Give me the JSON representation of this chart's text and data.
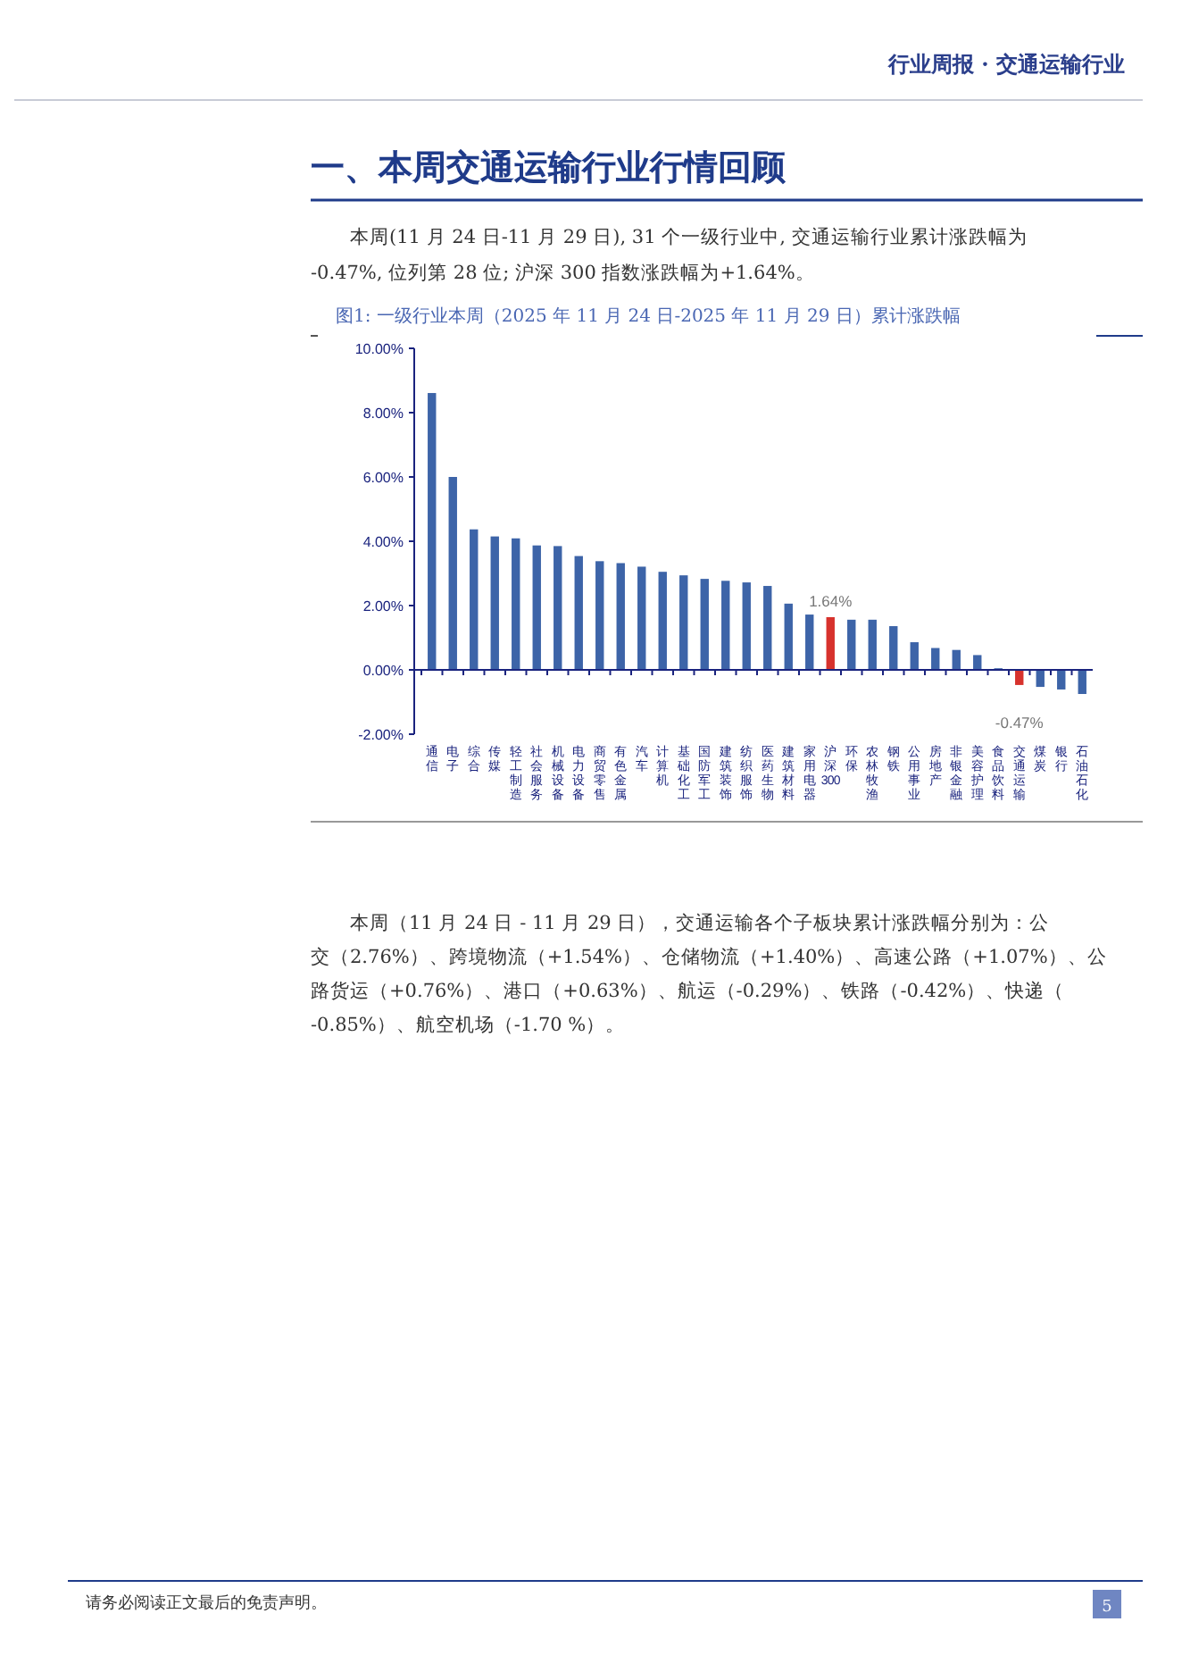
{
  "chart_data": {
    "type": "bar",
    "title": "图1: 一级行业本周（2025 年 11 月 24 日-2025 年 11 月 29 日）累计涨跌幅",
    "subtitle": "一、本周交通运输行业行情回顾",
    "annotations": [
      "行业周报 · 交通运输行业",
      "本周(11 月 24 日-11 月 29 日), 31 个一级行业中, 交通运输行业累计涨跌幅为-0.47%, 位列第 28 位; 沪深 300 指数涨跌幅为+1.64%。",
      "本周（11 月 24 日 - 11 月 29 日），交通运输各个子板块累计涨跌幅分别为：公交（2.76%）、跨境物流（+1.54%）、仓储物流（+1.40%）、高速公路（+1.07%）、公路货运（+0.76%）、港口（+0.63%）、航运（-0.29%）、铁路（-0.42%）、快递（-0.85%）、航空机场（-1.70 %）。",
      "请务必阅读正文最后的免责声明。",
      "5"
    ],
    "categories": [
      "通信",
      "电子",
      "综合",
      "传媒",
      "轻工制造",
      "社会服务",
      "机械设备",
      "电力设备",
      "商贸零售",
      "有色金属",
      "汽车",
      "计算机",
      "基础化工",
      "国防军工",
      "建筑装饰",
      "纺织服饰",
      "医药生物",
      "建筑材料",
      "家用电器",
      "沪深300",
      "环保",
      "农林牧渔",
      "钢铁",
      "公用事业",
      "房地产",
      "非银金融",
      "美容护理",
      "食品饮料",
      "交通运输",
      "煤炭",
      "银行",
      "石油石化"
    ],
    "values": [
      8.61,
      6.0,
      4.37,
      4.15,
      4.09,
      3.87,
      3.85,
      3.54,
      3.38,
      3.32,
      3.21,
      3.05,
      2.94,
      2.83,
      2.77,
      2.72,
      2.61,
      2.06,
      1.72,
      1.64,
      1.56,
      1.56,
      1.36,
      0.86,
      0.68,
      0.62,
      0.46,
      0.05,
      -0.47,
      -0.53,
      -0.61,
      -0.75
    ],
    "colors": [
      "#3d64a8",
      "#3d64a8",
      "#3d64a8",
      "#3d64a8",
      "#3d64a8",
      "#3d64a8",
      "#3d64a8",
      "#3d64a8",
      "#3d64a8",
      "#3d64a8",
      "#3d64a8",
      "#3d64a8",
      "#3d64a8",
      "#3d64a8",
      "#3d64a8",
      "#3d64a8",
      "#3d64a8",
      "#3d64a8",
      "#3d64a8",
      "#d7322d",
      "#3d64a8",
      "#3d64a8",
      "#3d64a8",
      "#3d64a8",
      "#3d64a8",
      "#3d64a8",
      "#3d64a8",
      "#3d64a8",
      "#d7322d",
      "#3d64a8",
      "#3d64a8",
      "#3d64a8"
    ],
    "value_labels": [
      null,
      null,
      null,
      null,
      null,
      null,
      null,
      null,
      null,
      null,
      null,
      null,
      null,
      null,
      null,
      null,
      null,
      null,
      null,
      "1.64%",
      null,
      null,
      null,
      null,
      null,
      null,
      null,
      null,
      "-0.47%",
      null,
      null,
      null
    ],
    "ylim": [
      -2,
      10
    ],
    "yticks": [
      {
        "value": -2,
        "label": "-2.00%"
      },
      {
        "value": 0,
        "label": "0.00%"
      },
      {
        "value": 2,
        "label": "2.00%"
      },
      {
        "value": 4,
        "label": "4.00%"
      },
      {
        "value": 6,
        "label": "6.00%"
      },
      {
        "value": 8,
        "label": "8.00%"
      },
      {
        "value": 10,
        "label": "10.00%"
      }
    ],
    "ref_lines": [
      {
        "axis": "y",
        "value": 0,
        "color": "#1a237e"
      }
    ],
    "grid": false
  }
}
